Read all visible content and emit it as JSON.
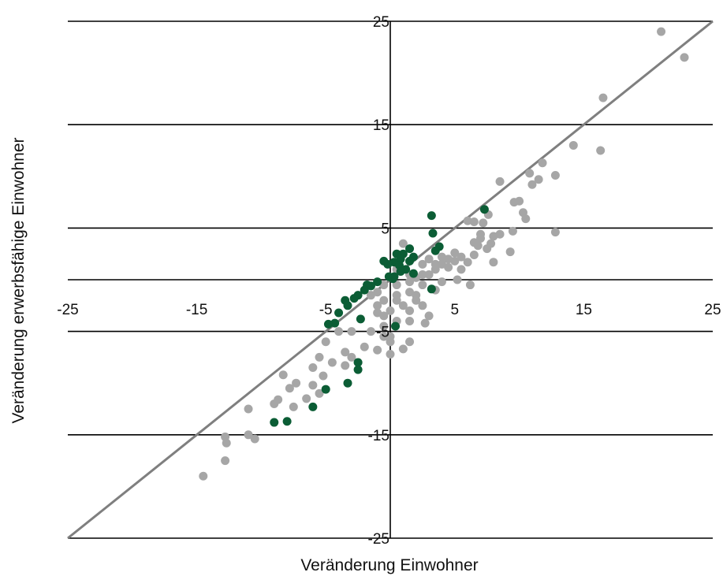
{
  "chart_data": {
    "type": "scatter",
    "title": "",
    "xlabel": "Veränderung Einwohner",
    "ylabel": "Veränderung erwerbsfähige Einwohner",
    "xlim": [
      -25,
      25
    ],
    "ylim": [
      -25,
      25
    ],
    "x_ticks": [
      -25,
      -15,
      -5,
      5,
      15,
      25
    ],
    "x_tick_labels": [
      "-25",
      "-15",
      "-5",
      "5",
      "15",
      "25"
    ],
    "y_gridlines": [
      25,
      15,
      5,
      0,
      -5,
      -15,
      -25
    ],
    "y_ticks": [
      25,
      15,
      5,
      -5,
      -15,
      -25
    ],
    "y_tick_labels": [
      "25",
      "15",
      "5",
      "-5",
      "-15",
      "-25"
    ],
    "grid": "horizontal",
    "reference_line": {
      "x": [
        -25,
        25
      ],
      "y": [
        -25,
        25
      ],
      "color": "#7f7f7f"
    },
    "colors": {
      "gray_series": "#a6a6a6",
      "green_series": "#0b5d35",
      "reference_line": "#7f7f7f"
    },
    "series": [
      {
        "color": "#a6a6a6",
        "points": [
          [
            21.0,
            24.0
          ],
          [
            22.8,
            21.5
          ],
          [
            16.5,
            17.6
          ],
          [
            16.3,
            12.5
          ],
          [
            14.2,
            13.0
          ],
          [
            11.8,
            11.3
          ],
          [
            10.8,
            10.3
          ],
          [
            11.5,
            9.7
          ],
          [
            12.8,
            10.1
          ],
          [
            8.5,
            9.5
          ],
          [
            11.0,
            9.2
          ],
          [
            10.0,
            7.6
          ],
          [
            9.6,
            7.5
          ],
          [
            10.3,
            6.5
          ],
          [
            10.5,
            5.9
          ],
          [
            9.5,
            4.7
          ],
          [
            12.8,
            4.6
          ],
          [
            6.0,
            5.7
          ],
          [
            6.5,
            5.6
          ],
          [
            7.0,
            4.4
          ],
          [
            8.0,
            4.2
          ],
          [
            8.5,
            4.4
          ],
          [
            6.5,
            3.6
          ],
          [
            7.8,
            3.5
          ],
          [
            7.5,
            3.0
          ],
          [
            9.3,
            2.7
          ],
          [
            8.0,
            1.7
          ],
          [
            6.5,
            2.4
          ],
          [
            5.0,
            2.6
          ],
          [
            6.0,
            1.7
          ],
          [
            5.5,
            1.0
          ],
          [
            6.2,
            -0.5
          ],
          [
            5.2,
            0.0
          ],
          [
            7.0,
            4.0
          ],
          [
            7.2,
            5.5
          ],
          [
            7.6,
            6.3
          ],
          [
            6.8,
            3.3
          ],
          [
            5.5,
            2.2
          ],
          [
            4.5,
            2.0
          ],
          [
            4.0,
            1.5
          ],
          [
            3.5,
            1.0
          ],
          [
            3.0,
            0.5
          ],
          [
            2.5,
            -0.5
          ],
          [
            3.5,
            -1.0
          ],
          [
            4.0,
            -0.2
          ],
          [
            2.0,
            -1.5
          ],
          [
            1.5,
            -1.2
          ],
          [
            2.0,
            -2.0
          ],
          [
            2.5,
            -2.5
          ],
          [
            1.5,
            -3.0
          ],
          [
            3.0,
            -3.5
          ],
          [
            2.7,
            -4.2
          ],
          [
            1.5,
            -4.0
          ],
          [
            0.5,
            -2.0
          ],
          [
            0.0,
            -3.0
          ],
          [
            -0.5,
            -2.0
          ],
          [
            -1.0,
            -3.2
          ],
          [
            -0.5,
            -4.5
          ],
          [
            0.0,
            -5.5
          ],
          [
            0.5,
            -4.0
          ],
          [
            1.5,
            -6.0
          ],
          [
            1.0,
            -6.7
          ],
          [
            0.0,
            -6.0
          ],
          [
            -0.5,
            -5.5
          ],
          [
            -1.5,
            -5.0
          ],
          [
            -2.0,
            -6.5
          ],
          [
            -3.0,
            -5.0
          ],
          [
            -4.0,
            -5.0
          ],
          [
            -5.0,
            -6.0
          ],
          [
            -3.5,
            -7.0
          ],
          [
            -3.0,
            -7.5
          ],
          [
            -2.5,
            -8.0
          ],
          [
            -3.5,
            -8.3
          ],
          [
            -4.5,
            -8.0
          ],
          [
            -5.5,
            -7.5
          ],
          [
            -6.0,
            -8.5
          ],
          [
            -5.2,
            -9.3
          ],
          [
            -6.0,
            -10.2
          ],
          [
            -5.5,
            -11.0
          ],
          [
            -6.5,
            -11.5
          ],
          [
            -7.3,
            -10.0
          ],
          [
            -7.8,
            -10.5
          ],
          [
            -8.3,
            -9.2
          ],
          [
            -8.7,
            -11.6
          ],
          [
            -9.0,
            -12.0
          ],
          [
            -7.5,
            -12.3
          ],
          [
            -11.0,
            -12.5
          ],
          [
            -11.0,
            -15.0
          ],
          [
            -10.5,
            -15.4
          ],
          [
            -12.8,
            -15.2
          ],
          [
            -12.7,
            -15.8
          ],
          [
            -12.8,
            -17.5
          ],
          [
            -14.5,
            -19.0
          ],
          [
            -1.0,
            -6.8
          ],
          [
            0.0,
            -7.2
          ],
          [
            1.0,
            3.5
          ],
          [
            0.5,
            1.0
          ],
          [
            1.5,
            0.5
          ],
          [
            2.0,
            0.2
          ],
          [
            1.5,
            -0.2
          ],
          [
            0.5,
            -0.5
          ],
          [
            -0.5,
            -0.5
          ],
          [
            -1.0,
            -1.2
          ],
          [
            -1.5,
            -1.5
          ],
          [
            0.5,
            -1.5
          ],
          [
            1.0,
            -2.5
          ],
          [
            -0.5,
            -3.5
          ],
          [
            -1.0,
            -2.5
          ],
          [
            2.5,
            0.5
          ],
          [
            3.0,
            2.0
          ],
          [
            3.5,
            1.5
          ],
          [
            4.5,
            1.2
          ],
          [
            5.0,
            1.8
          ],
          [
            2.5,
            1.5
          ],
          [
            4.0,
            2.2
          ]
        ]
      },
      {
        "color": "#0b5d35",
        "points": [
          [
            3.2,
            6.2
          ],
          [
            3.3,
            4.5
          ],
          [
            7.3,
            6.8
          ],
          [
            3.8,
            3.2
          ],
          [
            3.5,
            2.8
          ],
          [
            1.5,
            3.0
          ],
          [
            1.0,
            2.5
          ],
          [
            0.5,
            2.5
          ],
          [
            1.8,
            2.2
          ],
          [
            1.5,
            1.8
          ],
          [
            0.8,
            2.0
          ],
          [
            0.3,
            1.7
          ],
          [
            0.7,
            1.4
          ],
          [
            -0.2,
            1.5
          ],
          [
            -0.5,
            1.8
          ],
          [
            1.2,
            1.0
          ],
          [
            0.8,
            0.8
          ],
          [
            1.8,
            0.6
          ],
          [
            0.3,
            0.3
          ],
          [
            -0.1,
            0.3
          ],
          [
            0.2,
            0.1
          ],
          [
            -1.0,
            -0.2
          ],
          [
            -1.5,
            -0.6
          ],
          [
            -1.8,
            -0.5
          ],
          [
            -2.0,
            -1.0
          ],
          [
            -2.5,
            -1.5
          ],
          [
            -2.8,
            -1.8
          ],
          [
            -3.5,
            -2.0
          ],
          [
            -3.3,
            -2.5
          ],
          [
            -4.0,
            -3.2
          ],
          [
            -4.3,
            -4.2
          ],
          [
            -4.8,
            -4.3
          ],
          [
            -2.3,
            -3.8
          ],
          [
            0.4,
            -4.5
          ],
          [
            3.2,
            -0.9
          ],
          [
            -2.5,
            -8.0
          ],
          [
            -2.5,
            -8.7
          ],
          [
            -3.3,
            -10.0
          ],
          [
            -5.0,
            -10.6
          ],
          [
            -6.0,
            -12.3
          ],
          [
            -8.0,
            -13.7
          ],
          [
            -9.0,
            -13.8
          ]
        ]
      }
    ]
  }
}
